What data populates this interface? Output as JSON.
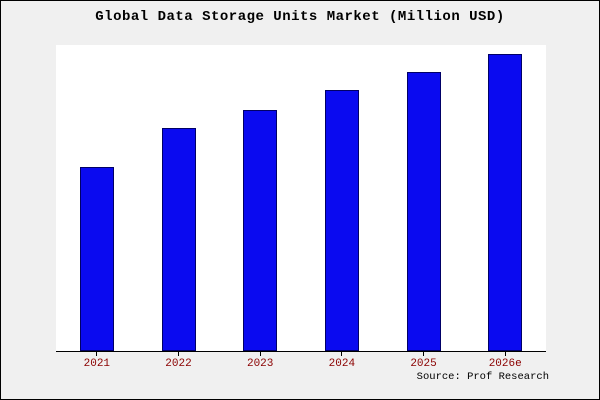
{
  "chart_data": {
    "type": "bar",
    "title": "Global Data Storage Units Market (Million USD)",
    "categories": [
      "2021",
      "2022",
      "2023",
      "2024",
      "2025",
      "2026e"
    ],
    "values": [
      62,
      75,
      81,
      88,
      94,
      100
    ],
    "xlabel": "",
    "ylabel": "",
    "ylim": [
      0,
      103
    ],
    "grid": false,
    "legend": false,
    "bar_color": "#0a0af0",
    "bar_edge_color": "#000066",
    "tick_label_color": "#8b0000",
    "plot_background": "#ffffff",
    "page_background": "#f0f0f0"
  },
  "footer": {
    "source_note": "Source: Prof Research"
  }
}
